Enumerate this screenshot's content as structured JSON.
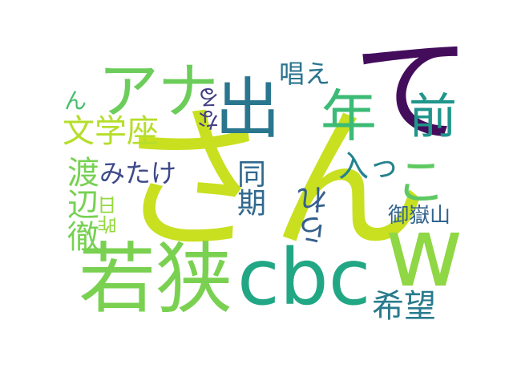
{
  "words": [
    {
      "key": "sann",
      "text": "さん",
      "color": "#c8e020"
    },
    {
      "key": "te",
      "text": "て",
      "color": "#440d5c"
    },
    {
      "key": "wakasa",
      "text": "若狭",
      "color": "#7ad151"
    },
    {
      "key": "cbc",
      "text": "cbc",
      "color": "#22a785"
    },
    {
      "key": "w",
      "text": "w",
      "color": "#8fd744"
    },
    {
      "key": "ana",
      "text": "アナ",
      "color": "#6ccd5a"
    },
    {
      "key": "de",
      "text": "出",
      "color": "#2a768e"
    },
    {
      "key": "nen",
      "text": "年",
      "color": "#3bbb75"
    },
    {
      "key": "mae",
      "text": "前",
      "color": "#1f958b"
    },
    {
      "key": "ko",
      "text": "こ",
      "color": "#5ec962"
    },
    {
      "key": "bungakuza",
      "text": "文学座",
      "color": "#b5de2b"
    },
    {
      "key": "watanabe",
      "text": "渡辺徹",
      "color": "#77d153"
    },
    {
      "key": "kibou",
      "text": "希望",
      "color": "#297b8e"
    },
    {
      "key": "douki",
      "text": "同期",
      "color": "#31688e"
    },
    {
      "key": "mitake",
      "text": "みたけ",
      "color": "#3e4a89"
    },
    {
      "key": "hai",
      "text": "入っ",
      "color": "#25838e"
    },
    {
      "key": "rare",
      "text": "られ",
      "color": "#35608d"
    },
    {
      "key": "ontake",
      "text": "御嶽山",
      "color": "#32648e"
    },
    {
      "key": "tonae",
      "text": "唱え",
      "color": "#2b748e"
    },
    {
      "key": "naru",
      "text": "なる",
      "color": "#433e85"
    },
    {
      "key": "n",
      "text": "ん",
      "color": "#45c06f"
    },
    {
      "key": "sakujitsu",
      "text": "昨日",
      "color": "#95d840"
    }
  ]
}
